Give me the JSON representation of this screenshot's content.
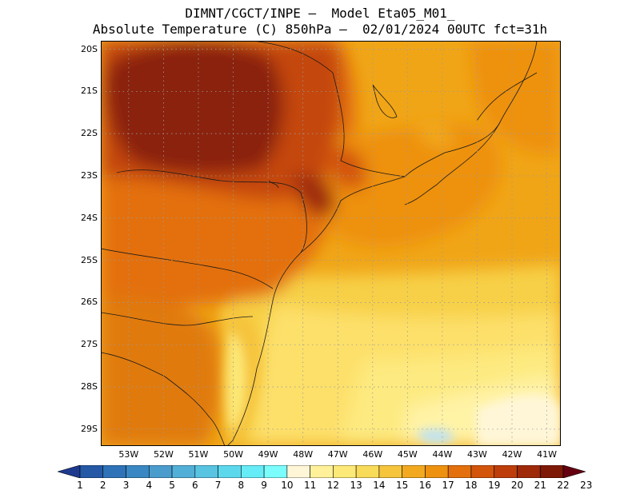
{
  "title": {
    "line1": "DIMNT/CGCT/INPE –  Model Eta05_M01_",
    "line2": "Absolute Temperature (C) 850hPa –  02/01/2024 00UTC fct=31h"
  },
  "map": {
    "lat_labels": [
      "20S",
      "21S",
      "22S",
      "23S",
      "24S",
      "25S",
      "26S",
      "27S",
      "28S",
      "29S"
    ],
    "lon_labels": [
      "53W",
      "52W",
      "51W",
      "50W",
      "49W",
      "48W",
      "47W",
      "46W",
      "45W",
      "44W",
      "43W",
      "42W",
      "41W"
    ],
    "lat_range": [
      -29.4,
      -19.8
    ],
    "lon_range": [
      -53.8,
      -40.6
    ]
  },
  "colorbar": {
    "labels": [
      "1",
      "2",
      "3",
      "4",
      "5",
      "6",
      "7",
      "8",
      "9",
      "10",
      "11",
      "12",
      "13",
      "14",
      "15",
      "16",
      "17",
      "18",
      "19",
      "20",
      "21",
      "22",
      "23"
    ],
    "colors": [
      "#1d3a8f",
      "#2559a6",
      "#2e73b8",
      "#3a88c3",
      "#4a9ccd",
      "#52afd8",
      "#58c4e2",
      "#5cd8ec",
      "#66ecf7",
      "#7bfdfd",
      "#fff6d8",
      "#fff19a",
      "#fde977",
      "#f9db5a",
      "#f6c53c",
      "#f2a91f",
      "#ee910f",
      "#e3700c",
      "#d3540b",
      "#bd3d0b",
      "#9e2a09",
      "#7e1807",
      "#640010"
    ]
  }
}
